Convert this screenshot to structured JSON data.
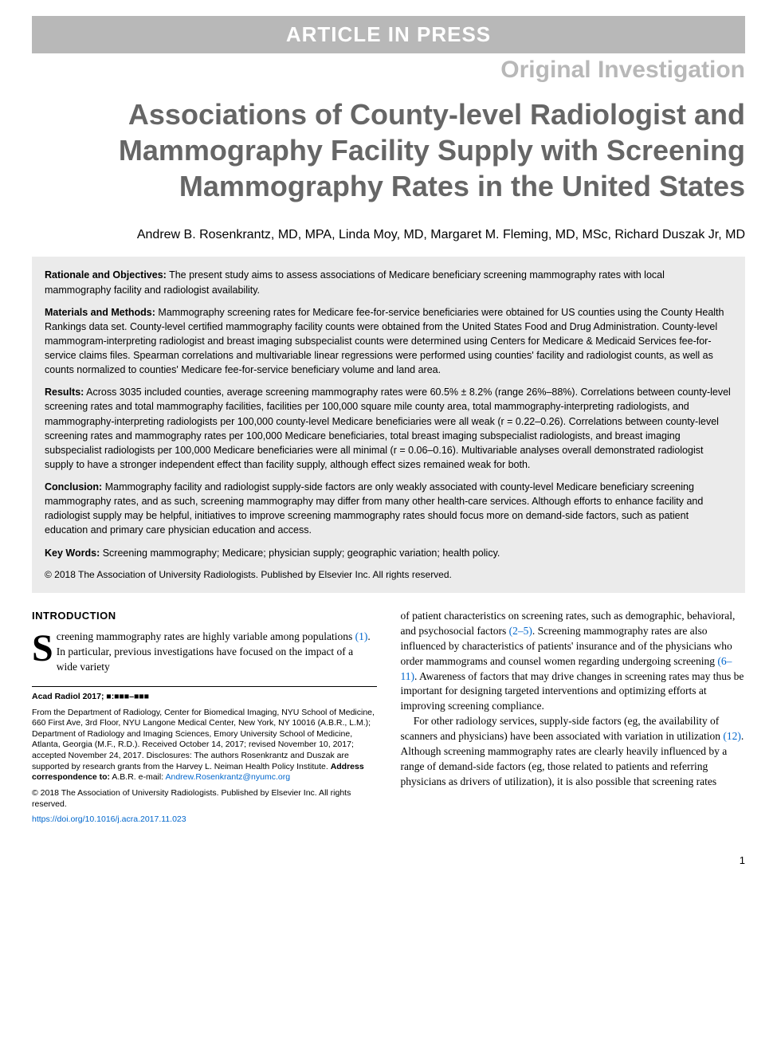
{
  "banner": "ARTICLE IN PRESS",
  "category": "Original Investigation",
  "title": "Associations of County-level Radiologist and Mammography Facility Supply with Screening Mammography Rates in the United States",
  "authors": "Andrew B. Rosenkrantz, MD, MPA, Linda Moy, MD, Margaret M. Fleming, MD, MSc, Richard Duszak Jr, MD",
  "abstract": {
    "rationale_label": "Rationale and Objectives:",
    "rationale": "The present study aims to assess associations of Medicare beneficiary screening mammography rates with local mammography facility and radiologist availability.",
    "methods_label": "Materials and Methods:",
    "methods": "Mammography screening rates for Medicare fee-for-service beneficiaries were obtained for US counties using the County Health Rankings data set. County-level certified mammography facility counts were obtained from the United States Food and Drug Administration. County-level mammogram-interpreting radiologist and breast imaging subspecialist counts were determined using Centers for Medicare & Medicaid Services fee-for-service claims files. Spearman correlations and multivariable linear regressions were performed using counties' facility and radiologist counts, as well as counts normalized to counties' Medicare fee-for-service beneficiary volume and land area.",
    "results_label": "Results:",
    "results": "Across 3035 included counties, average screening mammography rates were 60.5% ± 8.2% (range 26%–88%). Correlations between county-level screening rates and total mammography facilities, facilities per 100,000 square mile county area, total mammography-interpreting radiologists, and mammography-interpreting radiologists per 100,000 county-level Medicare beneficiaries were all weak (r = 0.22–0.26). Correlations between county-level screening rates and mammography rates per 100,000 Medicare beneficiaries, total breast imaging subspecialist radiologists, and breast imaging subspecialist radiologists per 100,000 Medicare beneficiaries were all minimal (r = 0.06–0.16). Multivariable analyses overall demonstrated radiologist supply to have a stronger independent effect than facility supply, although effect sizes remained weak for both.",
    "conclusion_label": "Conclusion:",
    "conclusion": "Mammography facility and radiologist supply-side factors are only weakly associated with county-level Medicare beneficiary screening mammography rates, and as such, screening mammography may differ from many other health-care services. Although efforts to enhance facility and radiologist supply may be helpful, initiatives to improve screening mammography rates should focus more on demand-side factors, such as patient education and primary care physician education and access.",
    "keywords_label": "Key Words:",
    "keywords": "Screening mammography; Medicare; physician supply; geographic variation; health policy.",
    "copyright": "© 2018 The Association of University Radiologists. Published by Elsevier Inc. All rights reserved."
  },
  "body": {
    "intro_heading": "INTRODUCTION",
    "dropcap": "S",
    "col1_para1": "creening mammography rates are highly variable among populations ",
    "cite1": "(1)",
    "col1_para1b": ". In particular, previous investigations have focused on the impact of a wide variety",
    "col2_para1a": "of patient characteristics on screening rates, such as demographic, behavioral, and psychosocial factors ",
    "cite2": "(2–5)",
    "col2_para1b": ". Screening mammography rates are also influenced by characteristics of patients' insurance and of the physicians who order mammograms and counsel women regarding undergoing screening ",
    "cite3": "(6–11)",
    "col2_para1c": ". Awareness of factors that may drive changes in screening rates may thus be important for designing targeted interventions and optimizing efforts at improving screening compliance.",
    "col2_para2a": "For other radiology services, supply-side factors (eg, the availability of scanners and physicians) have been associated with variation in utilization ",
    "cite4": "(12)",
    "col2_para2b": ". Although screening mammography rates are clearly heavily influenced by a range of demand-side factors (eg, those related to patients and referring physicians as drivers of utilization), it is also possible that screening rates"
  },
  "footnotes": {
    "citation": "Acad Radiol 2017; ■:■■■–■■■",
    "affiliation": "From the Department of Radiology, Center for Biomedical Imaging, NYU School of Medicine, 660 First Ave, 3rd Floor, NYU Langone Medical Center, New York, NY 10016 (A.B.R., L.M.); Department of Radiology and Imaging Sciences, Emory University School of Medicine, Atlanta, Georgia (M.F., R.D.). Received October 14, 2017; revised November 10, 2017; accepted November 24, 2017. Disclosures: The authors Rosenkrantz and Duszak are supported by research grants from the Harvey L. Neiman Health Policy Institute. ",
    "correspondence_label": "Address correspondence to:",
    "correspondence_name": " A.B.R. e-mail: ",
    "email": "Andrew.Rosenkrantz@nyumc.org",
    "copyright2": "© 2018 The Association of University Radiologists. Published by Elsevier Inc. All rights reserved.",
    "doi": "https://doi.org/10.1016/j.acra.2017.11.023"
  },
  "page_number": "1",
  "colors": {
    "banner_bg": "#b8b8b8",
    "banner_fg": "#ffffff",
    "category_fg": "#b8b8b8",
    "title_fg": "#666666",
    "abstract_bg": "#ebebeb",
    "link": "#0066cc"
  }
}
